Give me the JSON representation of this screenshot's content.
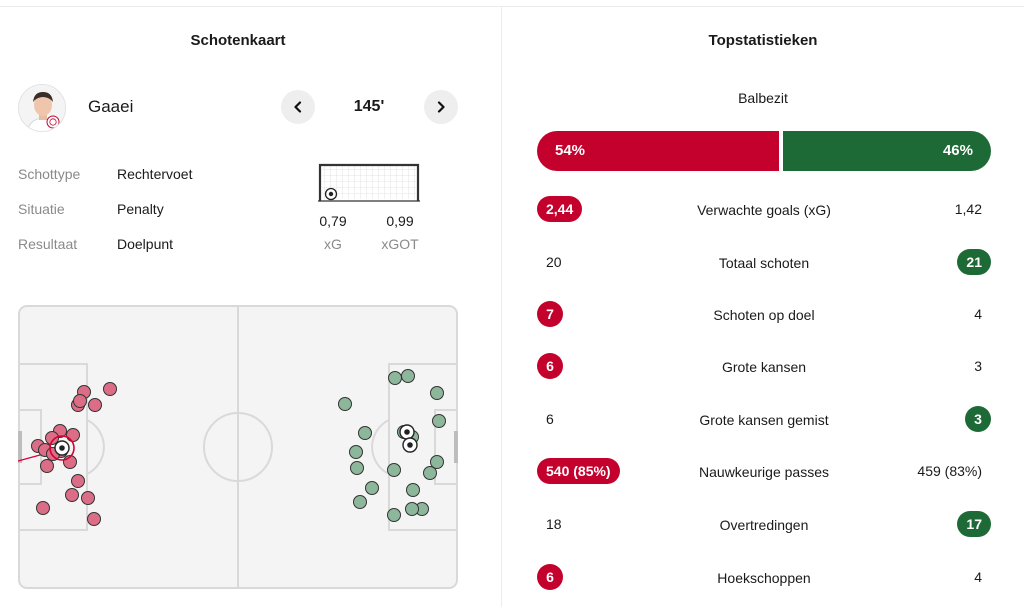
{
  "shot_map": {
    "title": "Schotenkaart",
    "player_name": "Gaaei",
    "minute": "145'",
    "details": [
      {
        "label": "Schottype",
        "value": "Rechtervoet"
      },
      {
        "label": "Situatie",
        "value": "Penalty"
      },
      {
        "label": "Resultaat",
        "value": "Doelpunt"
      }
    ],
    "xg_value": "0,79",
    "xg_label": "xG",
    "xgot_value": "0,99",
    "xgot_label": "xGOT",
    "colors": {
      "home": "#dc6d86",
      "away": "#8cb79a"
    }
  },
  "top_stats": {
    "title": "Topstatistieken",
    "possession": {
      "label": "Balbezit",
      "home": "54%",
      "away": "46%",
      "home_fraction": 0.54
    },
    "rows": [
      {
        "label": "Verwachte goals (xG)",
        "home": "2,44",
        "away": "1,42",
        "highlight": "home"
      },
      {
        "label": "Totaal schoten",
        "home": "20",
        "away": "21",
        "highlight": "away"
      },
      {
        "label": "Schoten op doel",
        "home": "7",
        "away": "4",
        "highlight": "home"
      },
      {
        "label": "Grote kansen",
        "home": "6",
        "away": "3",
        "highlight": "home"
      },
      {
        "label": "Grote kansen gemist",
        "home": "6",
        "away": "3",
        "highlight": "away"
      },
      {
        "label": "Nauwkeurige passes",
        "home": "540 (85%)",
        "away": "459 (83%)",
        "highlight": "home"
      },
      {
        "label": "Overtredingen",
        "home": "18",
        "away": "17",
        "highlight": "away"
      },
      {
        "label": "Hoekschoppen",
        "home": "6",
        "away": "4",
        "highlight": "home"
      }
    ],
    "colors": {
      "home": "#c4002d",
      "away": "#1e6a37"
    }
  },
  "icons": {
    "prev": "chevron-left-icon",
    "next": "chevron-right-icon",
    "ball": "football-icon",
    "goal": "goal-frame-icon"
  }
}
